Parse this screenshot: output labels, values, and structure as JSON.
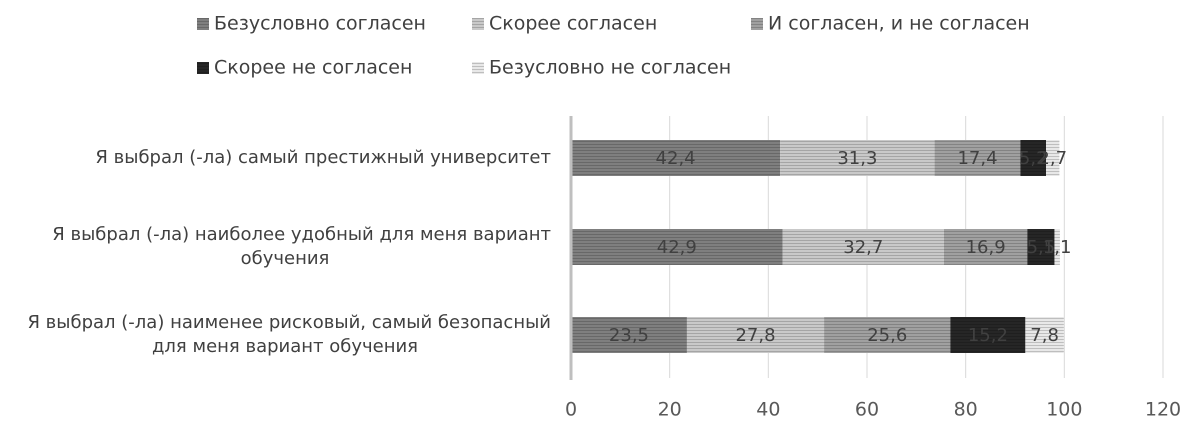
{
  "chart_data": {
    "type": "bar",
    "orientation": "horizontal",
    "stacked": true,
    "title": "",
    "xlabel": "",
    "ylabel": "",
    "xlim": [
      0,
      120
    ],
    "xticks": [
      0,
      20,
      40,
      60,
      80,
      100,
      120
    ],
    "grid": "vertical",
    "legend_position": "top",
    "categories": [
      [
        "Я выбрал (-ла) самый престижный университет"
      ],
      [
        "Я выбрал (-ла) наиболее удобный для меня вариант",
        "обучения"
      ],
      [
        "Я выбрал (-ла) наименее рисковый, самый безопасный",
        "для меня вариант обучения"
      ]
    ],
    "series": [
      {
        "name": "Безусловно согласен",
        "color": "#7f7f7f",
        "values": [
          42.4,
          42.9,
          23.5
        ],
        "labels": [
          "42,4",
          "42,9",
          "23,5"
        ]
      },
      {
        "name": "Скорее согласен",
        "color": "#c9c9c9",
        "values": [
          31.3,
          32.7,
          27.8
        ],
        "labels": [
          "31,3",
          "32,7",
          "27,8"
        ]
      },
      {
        "name": "И согласен, и не согласен",
        "color": "#a0a0a0",
        "values": [
          17.4,
          16.9,
          25.6
        ],
        "labels": [
          "17,4",
          "16,9",
          "25,6"
        ]
      },
      {
        "name": "Скорее не согласен",
        "color": "#262626",
        "values": [
          5.2,
          5.5,
          15.2
        ],
        "labels": [
          "5,2",
          "5,5",
          "15,2"
        ]
      },
      {
        "name": "Безусловно не согласен",
        "color": "#e8e8e8",
        "values": [
          2.7,
          1.1,
          7.8
        ],
        "labels": [
          "2,7",
          "1,1",
          "7,8"
        ]
      }
    ]
  }
}
